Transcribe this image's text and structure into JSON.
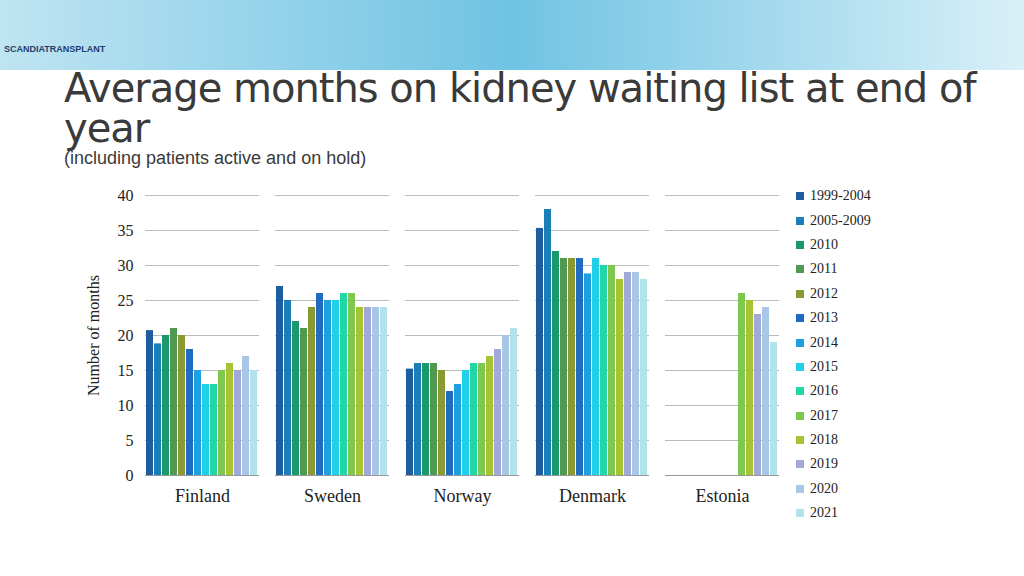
{
  "logo": "SCANDIATRANSPLANT",
  "chart_data": {
    "type": "bar",
    "title": "Average months on kidney waiting list at end of year",
    "subtitle": "(including patients active and on hold)",
    "y_label": "Number of months",
    "categories": [
      "Finland",
      "Sweden",
      "Norway",
      "Denmark",
      "Estonia"
    ],
    "ylim": [
      0,
      40
    ],
    "yticks": [
      0,
      5,
      10,
      15,
      20,
      25,
      30,
      35,
      40
    ],
    "grid": true,
    "legend": "right",
    "series": [
      {
        "name": "1999-2004",
        "color": "#1f5e9e",
        "values": [
          20.7,
          27,
          15.2,
          35.3,
          null
        ]
      },
      {
        "name": "2005-2009",
        "color": "#1a7fb8",
        "values": [
          18.8,
          25,
          16,
          38,
          null
        ]
      },
      {
        "name": "2010",
        "color": "#1a9a6c",
        "values": [
          20,
          22,
          16,
          32,
          null
        ]
      },
      {
        "name": "2011",
        "color": "#4f9a50",
        "values": [
          21,
          21,
          16,
          31,
          null
        ]
      },
      {
        "name": "2012",
        "color": "#8a9a32",
        "values": [
          20,
          24,
          15,
          31,
          null
        ]
      },
      {
        "name": "2013",
        "color": "#1f6cc2",
        "values": [
          18,
          26,
          12,
          31,
          null
        ]
      },
      {
        "name": "2014",
        "color": "#1ca0e0",
        "values": [
          15,
          25,
          13,
          28.8,
          null
        ]
      },
      {
        "name": "2015",
        "color": "#20d0e8",
        "values": [
          13,
          25,
          15,
          31,
          null
        ]
      },
      {
        "name": "2016",
        "color": "#22d6a6",
        "values": [
          13,
          26,
          16,
          30,
          null
        ]
      },
      {
        "name": "2017",
        "color": "#7ec850",
        "values": [
          15,
          26,
          16,
          30,
          26
        ]
      },
      {
        "name": "2018",
        "color": "#a6c432",
        "values": [
          16,
          24,
          17,
          28,
          25
        ]
      },
      {
        "name": "2019",
        "color": "#a2a8d8",
        "values": [
          15,
          24,
          18,
          29,
          23
        ]
      },
      {
        "name": "2020",
        "color": "#a8c6e6",
        "values": [
          17,
          24,
          20,
          29,
          24
        ]
      },
      {
        "name": "2021",
        "color": "#b2e2ea",
        "values": [
          15,
          24,
          21,
          28,
          19
        ]
      }
    ]
  }
}
